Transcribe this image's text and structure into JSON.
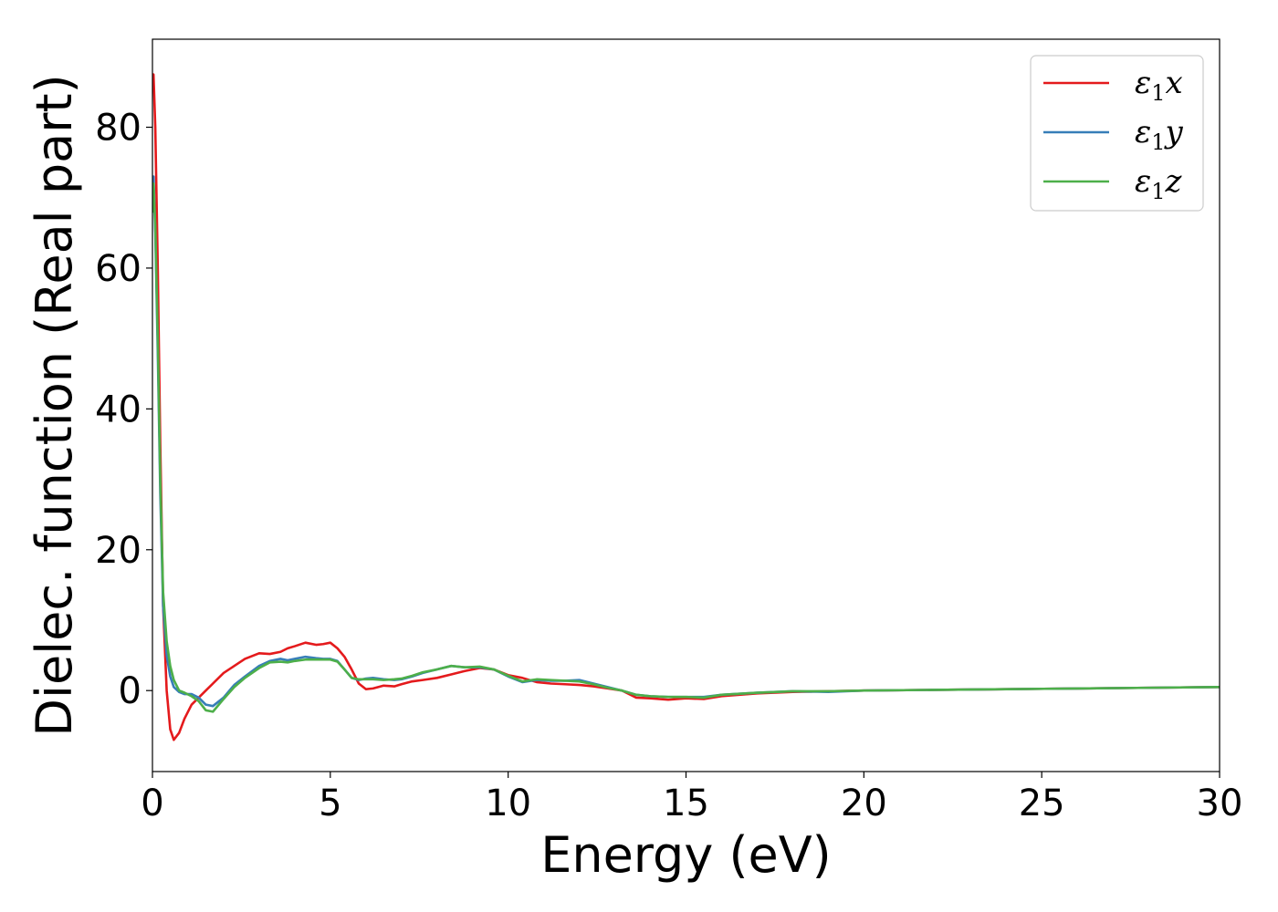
{
  "chart_data": {
    "type": "line",
    "title": "",
    "xlabel": "Energy (eV)",
    "ylabel": "Dielec. function (Real part)",
    "xlim": [
      0,
      30
    ],
    "ylim": [
      -11.5,
      92.5
    ],
    "xticks": [
      0,
      5,
      10,
      15,
      20,
      25,
      30
    ],
    "yticks": [
      0,
      20,
      40,
      60,
      80
    ],
    "grid": false,
    "legend_position": "top-right",
    "series": [
      {
        "name": "ε1x",
        "color": "#e41a1c",
        "x": [
          0.0,
          0.03,
          0.08,
          0.15,
          0.22,
          0.3,
          0.4,
          0.5,
          0.6,
          0.75,
          0.9,
          1.1,
          1.3,
          1.5,
          1.7,
          2.0,
          2.3,
          2.6,
          3.0,
          3.3,
          3.6,
          3.8,
          4.0,
          4.3,
          4.6,
          4.8,
          5.0,
          5.2,
          5.4,
          5.6,
          5.8,
          6.0,
          6.2,
          6.5,
          6.8,
          7.0,
          7.3,
          7.6,
          8.0,
          8.4,
          8.8,
          9.2,
          9.6,
          10.0,
          10.4,
          10.8,
          11.2,
          11.6,
          12.0,
          12.4,
          12.8,
          13.2,
          13.6,
          14.0,
          14.5,
          15.0,
          15.5,
          16.0,
          17.0,
          18.0,
          19.0,
          20.0,
          22.0,
          24.0,
          26.0,
          28.0,
          30.0
        ],
        "y": [
          86,
          87.5,
          80,
          60,
          35,
          12,
          0,
          -5.5,
          -7,
          -6,
          -4,
          -2,
          -1,
          0,
          1,
          2.5,
          3.5,
          4.5,
          5.3,
          5.2,
          5.5,
          6.0,
          6.3,
          6.8,
          6.5,
          6.6,
          6.8,
          6.0,
          4.8,
          3.0,
          1.0,
          0.2,
          0.3,
          0.7,
          0.6,
          0.9,
          1.3,
          1.5,
          1.8,
          2.3,
          2.8,
          3.2,
          3.0,
          2.2,
          1.8,
          1.2,
          1.0,
          0.9,
          0.8,
          0.6,
          0.3,
          0.0,
          -1.0,
          -1.1,
          -1.3,
          -1.1,
          -1.2,
          -0.8,
          -0.4,
          -0.2,
          -0.1,
          0.0,
          0.1,
          0.2,
          0.3,
          0.4,
          0.5
        ]
      },
      {
        "name": "ε1y",
        "color": "#377eb8",
        "x": [
          0.0,
          0.03,
          0.08,
          0.15,
          0.22,
          0.3,
          0.4,
          0.5,
          0.6,
          0.75,
          0.9,
          1.1,
          1.3,
          1.5,
          1.7,
          2.0,
          2.3,
          2.6,
          3.0,
          3.3,
          3.6,
          3.8,
          4.0,
          4.3,
          4.6,
          4.8,
          5.0,
          5.2,
          5.4,
          5.6,
          5.8,
          6.0,
          6.2,
          6.5,
          6.8,
          7.0,
          7.3,
          7.6,
          8.0,
          8.4,
          8.8,
          9.2,
          9.6,
          10.0,
          10.4,
          10.8,
          11.2,
          11.6,
          12.0,
          12.4,
          12.8,
          13.2,
          13.6,
          14.0,
          14.5,
          15.0,
          15.5,
          16.0,
          17.0,
          18.0,
          19.0,
          20.0,
          22.0,
          24.0,
          26.0,
          28.0,
          30.0
        ],
        "y": [
          70,
          73,
          65,
          48,
          28,
          12,
          5,
          2,
          0.5,
          -0.2,
          -0.5,
          -0.5,
          -1.0,
          -2.0,
          -2.2,
          -1.0,
          0.8,
          2.0,
          3.5,
          4.2,
          4.5,
          4.3,
          4.5,
          4.8,
          4.6,
          4.5,
          4.5,
          4.2,
          3.0,
          1.8,
          1.5,
          1.7,
          1.8,
          1.6,
          1.5,
          1.6,
          2.0,
          2.5,
          3.0,
          3.5,
          3.3,
          3.3,
          3.0,
          2.0,
          1.2,
          1.5,
          1.4,
          1.4,
          1.5,
          1.0,
          0.5,
          0.0,
          -0.6,
          -0.8,
          -0.9,
          -0.9,
          -0.9,
          -0.6,
          -0.3,
          -0.1,
          -0.2,
          0.0,
          0.1,
          0.2,
          0.3,
          0.4,
          0.5
        ]
      },
      {
        "name": "ε1z",
        "color": "#4daf4a",
        "x": [
          0.0,
          0.03,
          0.08,
          0.15,
          0.22,
          0.3,
          0.4,
          0.5,
          0.6,
          0.75,
          0.9,
          1.1,
          1.3,
          1.5,
          1.7,
          2.0,
          2.3,
          2.6,
          3.0,
          3.3,
          3.6,
          3.8,
          4.0,
          4.3,
          4.6,
          4.8,
          5.0,
          5.2,
          5.4,
          5.6,
          5.8,
          6.0,
          6.2,
          6.5,
          6.8,
          7.0,
          7.3,
          7.6,
          8.0,
          8.4,
          8.8,
          9.2,
          9.6,
          10.0,
          10.4,
          10.8,
          11.2,
          11.6,
          12.0,
          12.4,
          12.8,
          13.2,
          13.6,
          14.0,
          14.5,
          15.0,
          15.5,
          16.0,
          17.0,
          18.0,
          19.0,
          20.0,
          22.0,
          24.0,
          26.0,
          28.0,
          30.0
        ],
        "y": [
          68,
          72,
          66,
          50,
          30,
          14,
          7,
          3.5,
          1.5,
          0.0,
          -0.3,
          -0.8,
          -1.5,
          -2.8,
          -3.0,
          -1.2,
          0.5,
          1.8,
          3.2,
          4.0,
          4.1,
          4.0,
          4.2,
          4.4,
          4.4,
          4.4,
          4.4,
          4.1,
          3.0,
          1.8,
          1.6,
          1.6,
          1.6,
          1.5,
          1.6,
          1.7,
          2.1,
          2.6,
          3.0,
          3.5,
          3.3,
          3.4,
          3.0,
          2.1,
          1.3,
          1.6,
          1.5,
          1.4,
          1.3,
          0.9,
          0.4,
          0.0,
          -0.6,
          -0.8,
          -0.9,
          -0.9,
          -1.0,
          -0.6,
          -0.3,
          -0.1,
          -0.1,
          0.0,
          0.1,
          0.2,
          0.3,
          0.4,
          0.5
        ]
      }
    ]
  },
  "legend": {
    "entries": [
      {
        "base": "ε",
        "sub": "1",
        "var": "x"
      },
      {
        "base": "ε",
        "sub": "1",
        "var": "y"
      },
      {
        "base": "ε",
        "sub": "1",
        "var": "z"
      }
    ]
  }
}
